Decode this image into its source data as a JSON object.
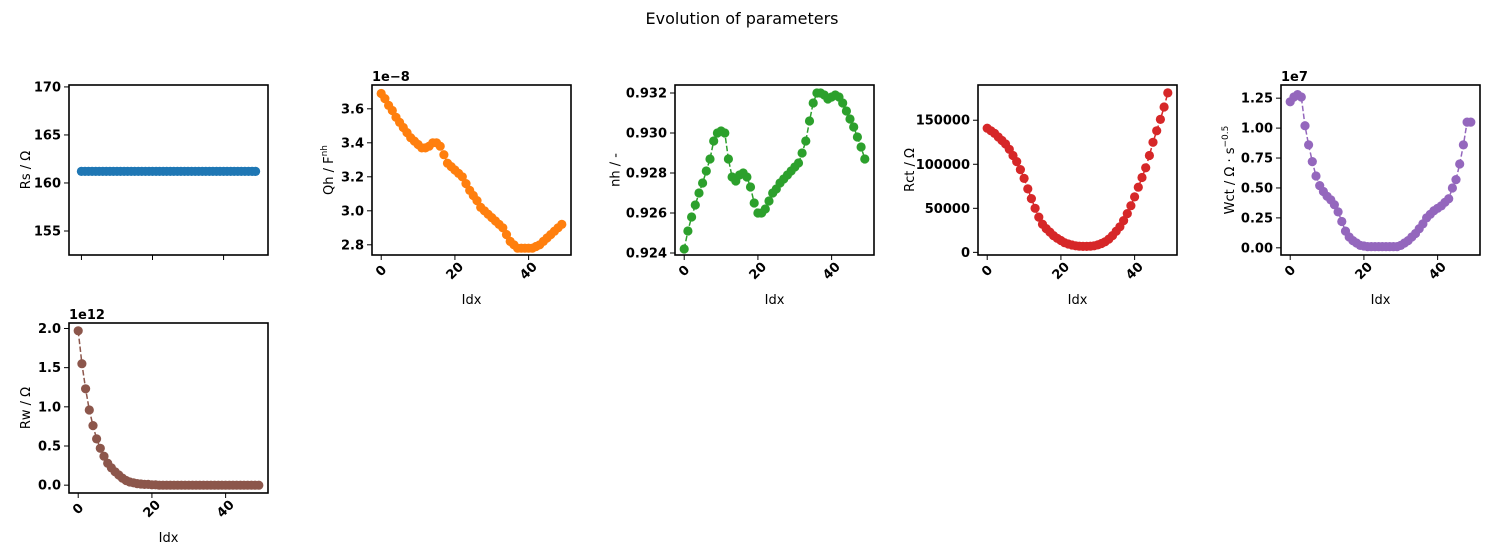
{
  "figure": {
    "title": "Evolution of parameters"
  },
  "chart_data": [
    {
      "type": "line",
      "name": "Rs",
      "ylabel": "Rs / Ω",
      "xlabel": "",
      "color": "#1f77b4",
      "x": [
        0,
        1,
        2,
        3,
        4,
        5,
        6,
        7,
        8,
        9,
        10,
        11,
        12,
        13,
        14,
        15,
        16,
        17,
        18,
        19,
        20,
        21,
        22,
        23,
        24,
        25,
        26,
        27,
        28,
        29,
        30,
        31,
        32,
        33,
        34,
        35,
        36,
        37,
        38,
        39,
        40,
        41,
        42,
        43,
        44,
        45,
        46,
        47,
        48,
        49
      ],
      "values": [
        161.2,
        161.2,
        161.2,
        161.2,
        161.2,
        161.2,
        161.2,
        161.2,
        161.2,
        161.2,
        161.2,
        161.2,
        161.2,
        161.2,
        161.2,
        161.2,
        161.2,
        161.2,
        161.2,
        161.2,
        161.2,
        161.2,
        161.2,
        161.2,
        161.2,
        161.2,
        161.2,
        161.2,
        161.2,
        161.2,
        161.2,
        161.2,
        161.2,
        161.2,
        161.2,
        161.2,
        161.2,
        161.2,
        161.2,
        161.2,
        161.2,
        161.2,
        161.2,
        161.2,
        161.2,
        161.2,
        161.2,
        161.2,
        161.2,
        161.2
      ],
      "xlim": [
        -3.5,
        52.5
      ],
      "ylim": [
        152.5,
        170.2
      ],
      "yticks": [
        155,
        160,
        165,
        170
      ],
      "ytick_labels": [
        "155",
        "160",
        "165",
        "170"
      ],
      "xticks": [
        0,
        20,
        40
      ],
      "xtick_labels": [
        "",
        "",
        ""
      ],
      "offset_text": ""
    },
    {
      "type": "line",
      "name": "Qh",
      "ylabel": "Qh / F",
      "ylabel_sup": "nh",
      "xlabel": "Idx",
      "color": "#ff7f0e",
      "x": [
        0,
        1,
        2,
        3,
        4,
        5,
        6,
        7,
        8,
        9,
        10,
        11,
        12,
        13,
        14,
        15,
        16,
        17,
        18,
        19,
        20,
        21,
        22,
        23,
        24,
        25,
        26,
        27,
        28,
        29,
        30,
        31,
        32,
        33,
        34,
        35,
        36,
        37,
        38,
        39,
        40,
        41,
        42,
        43,
        44,
        45,
        46,
        47,
        48,
        49
      ],
      "values": [
        3.69,
        3.66,
        3.62,
        3.59,
        3.55,
        3.52,
        3.49,
        3.46,
        3.43,
        3.41,
        3.39,
        3.37,
        3.37,
        3.38,
        3.4,
        3.4,
        3.38,
        3.33,
        3.28,
        3.26,
        3.24,
        3.22,
        3.2,
        3.16,
        3.12,
        3.09,
        3.06,
        3.02,
        3.0,
        2.98,
        2.96,
        2.94,
        2.92,
        2.9,
        2.86,
        2.82,
        2.8,
        2.78,
        2.78,
        2.78,
        2.78,
        2.78,
        2.79,
        2.8,
        2.82,
        2.84,
        2.86,
        2.88,
        2.9,
        2.92
      ],
      "xlim": [
        -2.5,
        51.5
      ],
      "ylim": [
        2.74,
        3.74
      ],
      "yticks": [
        2.8,
        3.0,
        3.2,
        3.4,
        3.6
      ],
      "ytick_labels": [
        "2.8",
        "3.0",
        "3.2",
        "3.4",
        "3.6"
      ],
      "xticks": [
        0,
        20,
        40
      ],
      "xtick_labels": [
        "0",
        "20",
        "40"
      ],
      "offset_text": "1e−8"
    },
    {
      "type": "line",
      "name": "nh",
      "ylabel": "nh / -",
      "xlabel": "Idx",
      "color": "#2ca02c",
      "x": [
        0,
        1,
        2,
        3,
        4,
        5,
        6,
        7,
        8,
        9,
        10,
        11,
        12,
        13,
        14,
        15,
        16,
        17,
        18,
        19,
        20,
        21,
        22,
        23,
        24,
        25,
        26,
        27,
        28,
        29,
        30,
        31,
        32,
        33,
        34,
        35,
        36,
        37,
        38,
        39,
        40,
        41,
        42,
        43,
        44,
        45,
        46,
        47,
        48,
        49
      ],
      "values": [
        0.9242,
        0.9251,
        0.9258,
        0.9264,
        0.927,
        0.9275,
        0.9281,
        0.9287,
        0.9296,
        0.93,
        0.9301,
        0.93,
        0.9287,
        0.9278,
        0.9276,
        0.9279,
        0.928,
        0.9278,
        0.9273,
        0.9265,
        0.926,
        0.926,
        0.9262,
        0.9266,
        0.927,
        0.9272,
        0.9275,
        0.9277,
        0.9279,
        0.9281,
        0.9283,
        0.9285,
        0.929,
        0.9296,
        0.9306,
        0.9315,
        0.932,
        0.932,
        0.9319,
        0.9317,
        0.9318,
        0.9319,
        0.9318,
        0.9315,
        0.9311,
        0.9307,
        0.9303,
        0.9298,
        0.9293,
        0.9287
      ],
      "xlim": [
        -2.5,
        51.5
      ],
      "ylim": [
        0.9239,
        0.9324
      ],
      "yticks": [
        0.924,
        0.926,
        0.928,
        0.93,
        0.932
      ],
      "ytick_labels": [
        "0.924",
        "0.926",
        "0.928",
        "0.930",
        "0.932"
      ],
      "xticks": [
        0,
        20,
        40
      ],
      "xtick_labels": [
        "0",
        "20",
        "40"
      ],
      "offset_text": ""
    },
    {
      "type": "line",
      "name": "Rct",
      "ylabel": "Rct / Ω",
      "xlabel": "Idx",
      "color": "#d62728",
      "x": [
        0,
        1,
        2,
        3,
        4,
        5,
        6,
        7,
        8,
        9,
        10,
        11,
        12,
        13,
        14,
        15,
        16,
        17,
        18,
        19,
        20,
        21,
        22,
        23,
        24,
        25,
        26,
        27,
        28,
        29,
        30,
        31,
        32,
        33,
        34,
        35,
        36,
        37,
        38,
        39,
        40,
        41,
        42,
        43,
        44,
        45,
        46,
        47,
        48,
        49
      ],
      "values": [
        141000,
        138000,
        135000,
        131000,
        127000,
        123000,
        117000,
        110000,
        103000,
        94000,
        84000,
        72000,
        61000,
        50000,
        40000,
        32000,
        27000,
        23000,
        19000,
        16000,
        13500,
        11000,
        9500,
        8300,
        7500,
        7000,
        6800,
        6800,
        7000,
        7500,
        8500,
        10000,
        12000,
        15000,
        19000,
        24000,
        29000,
        36000,
        44000,
        53000,
        63000,
        74000,
        85000,
        96000,
        110000,
        125000,
        138000,
        151000,
        165000,
        181000
      ],
      "xlim": [
        -2.5,
        51.5
      ],
      "ylim": [
        -3000,
        190000
      ],
      "yticks": [
        0,
        50000,
        100000,
        150000
      ],
      "ytick_labels": [
        "0",
        "50000",
        "100000",
        "150000"
      ],
      "xticks": [
        0,
        20,
        40
      ],
      "xtick_labels": [
        "0",
        "20",
        "40"
      ],
      "offset_text": ""
    },
    {
      "type": "line",
      "name": "Wct",
      "ylabel": "Wct / Ω · s",
      "ylabel_sup": "−0.5",
      "xlabel": "Idx",
      "color": "#9467bd",
      "x": [
        0,
        1,
        2,
        3,
        4,
        5,
        6,
        7,
        8,
        9,
        10,
        11,
        12,
        13,
        14,
        15,
        16,
        17,
        18,
        19,
        20,
        21,
        22,
        23,
        24,
        25,
        26,
        27,
        28,
        29,
        30,
        31,
        32,
        33,
        34,
        35,
        36,
        37,
        38,
        39,
        40,
        41,
        42,
        43,
        44,
        45,
        46,
        47,
        48,
        49
      ],
      "values": [
        1.22,
        1.26,
        1.28,
        1.26,
        1.02,
        0.86,
        0.72,
        0.6,
        0.52,
        0.47,
        0.43,
        0.4,
        0.36,
        0.3,
        0.22,
        0.14,
        0.09,
        0.06,
        0.04,
        0.02,
        0.015,
        0.01,
        0.01,
        0.01,
        0.01,
        0.01,
        0.01,
        0.01,
        0.01,
        0.01,
        0.02,
        0.04,
        0.06,
        0.09,
        0.12,
        0.16,
        0.2,
        0.25,
        0.28,
        0.31,
        0.33,
        0.35,
        0.38,
        0.41,
        0.5,
        0.57,
        0.7,
        0.86,
        1.05,
        1.05
      ],
      "xlim": [
        -2.5,
        51.5
      ],
      "ylim": [
        -0.06,
        1.36
      ],
      "yticks": [
        0.0,
        0.25,
        0.5,
        0.75,
        1.0,
        1.25
      ],
      "ytick_labels": [
        "0.00",
        "0.25",
        "0.50",
        "0.75",
        "1.00",
        "1.25"
      ],
      "xticks": [
        0,
        20,
        40
      ],
      "xtick_labels": [
        "0",
        "20",
        "40"
      ],
      "offset_text": "1e7"
    },
    {
      "type": "line",
      "name": "Rw",
      "ylabel": "Rw / Ω",
      "xlabel": "Idx",
      "color": "#8c564b",
      "x": [
        0,
        1,
        2,
        3,
        4,
        5,
        6,
        7,
        8,
        9,
        10,
        11,
        12,
        13,
        14,
        15,
        16,
        17,
        18,
        19,
        20,
        21,
        22,
        23,
        24,
        25,
        26,
        27,
        28,
        29,
        30,
        31,
        32,
        33,
        34,
        35,
        36,
        37,
        38,
        39,
        40,
        41,
        42,
        43,
        44,
        45,
        46,
        47,
        48,
        49
      ],
      "values": [
        1.97,
        1.55,
        1.23,
        0.96,
        0.76,
        0.59,
        0.47,
        0.37,
        0.28,
        0.22,
        0.17,
        0.13,
        0.09,
        0.06,
        0.04,
        0.03,
        0.02,
        0.015,
        0.01,
        0.01,
        0.005,
        0.005,
        0,
        0,
        0,
        0,
        0,
        0,
        0,
        0,
        0,
        0,
        0,
        0,
        0,
        0,
        0,
        0,
        0,
        0,
        0,
        0,
        0,
        0,
        0,
        0,
        0,
        0,
        0,
        0
      ],
      "xlim": [
        -2.5,
        51.5
      ],
      "ylim": [
        -0.1,
        2.07
      ],
      "yticks": [
        0.0,
        0.5,
        1.0,
        1.5,
        2.0
      ],
      "ytick_labels": [
        "0.0",
        "0.5",
        "1.0",
        "1.5",
        "2.0"
      ],
      "xticks": [
        0,
        20,
        40
      ],
      "xtick_labels": [
        "0",
        "20",
        "40"
      ],
      "offset_text": "1e12"
    }
  ]
}
